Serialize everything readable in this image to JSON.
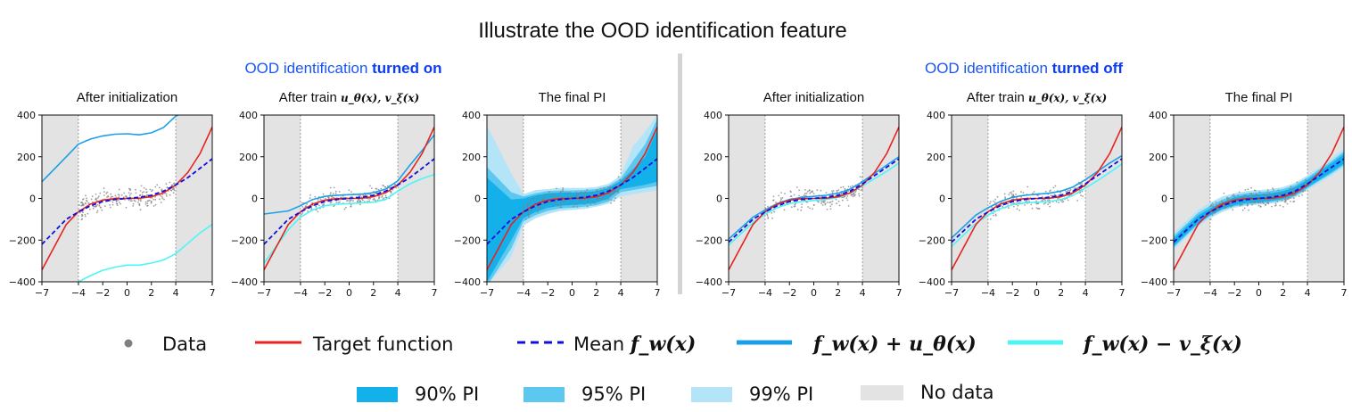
{
  "title": "Illustrate the OOD identification feature",
  "sections": [
    {
      "prefix": "OOD identification ",
      "emph": "turned on"
    },
    {
      "prefix": "OOD identification ",
      "emph": "turned off"
    }
  ],
  "colors": {
    "target": "#e8231f",
    "mean": "#1010dd",
    "upper": "#1ba0e8",
    "lower": "#4ff5f5",
    "data": "#808080",
    "pi90": "#13b0ea",
    "pi95": "#5cc8f0",
    "pi99": "#b4e4f8",
    "nodata": "#e3e3e3",
    "green": "#2fa84f"
  },
  "legend": {
    "data": "Data",
    "target": "Target function",
    "mean": "Mean ",
    "mean_math": "f_w(x)",
    "upper_math": "f_w(x) + u_θ(x)",
    "lower_math": "f_w(x) − v_ξ(x)",
    "pi90": "90% PI",
    "pi95": "95% PI",
    "pi99": "99% PI",
    "nodata": "No data"
  },
  "chart_data": [
    {
      "type": "line",
      "title": "After initialization",
      "section": "on",
      "xlim": [
        -7,
        7
      ],
      "ylim": [
        -400,
        400
      ],
      "xticks": [
        -7,
        -4,
        -2,
        0,
        2,
        4,
        7
      ],
      "yticks": [
        -400,
        -200,
        0,
        200,
        400
      ],
      "no_data_regions": [
        [
          -7,
          -4
        ],
        [
          4,
          7
        ]
      ],
      "x": [
        -7,
        -5,
        -4,
        -3,
        -2,
        -1,
        0,
        1,
        2,
        3,
        4,
        5,
        6,
        7
      ],
      "series": [
        {
          "name": "Target function",
          "values": [
            -343,
            -125,
            -64,
            -27,
            -8,
            -1,
            0,
            1,
            8,
            27,
            64,
            125,
            216,
            343
          ]
        },
        {
          "name": "Mean f_w(x)",
          "values": [
            -220,
            -100,
            -65,
            -35,
            -15,
            -5,
            0,
            5,
            15,
            35,
            65,
            100,
            145,
            190
          ]
        },
        {
          "name": "f_w(x) + u_θ(x)",
          "values": [
            80,
            200,
            260,
            285,
            300,
            308,
            310,
            305,
            315,
            340,
            395,
            420,
            430,
            440
          ]
        },
        {
          "name": "f_w(x) − v_ξ(x)",
          "values": [
            -500,
            -440,
            -400,
            -370,
            -345,
            -330,
            -320,
            -320,
            -310,
            -295,
            -265,
            -215,
            -165,
            -125
          ]
        }
      ]
    },
    {
      "type": "line",
      "title": "After train u_θ(x), v_ξ(x)",
      "section": "on",
      "xlim": [
        -7,
        7
      ],
      "ylim": [
        -400,
        400
      ],
      "xticks": [
        -7,
        -4,
        -2,
        0,
        2,
        4,
        7
      ],
      "yticks": [
        -400,
        -200,
        0,
        200,
        400
      ],
      "no_data_regions": [
        [
          -7,
          -4
        ],
        [
          4,
          7
        ]
      ],
      "x": [
        -7,
        -5,
        -4,
        -3,
        -2,
        -1,
        0,
        1,
        2,
        3,
        4,
        5,
        6,
        7
      ],
      "series": [
        {
          "name": "Target function",
          "values": [
            -343,
            -125,
            -64,
            -27,
            -8,
            -1,
            0,
            1,
            8,
            27,
            64,
            125,
            216,
            343
          ]
        },
        {
          "name": "Mean f_w(x)",
          "values": [
            -220,
            -100,
            -65,
            -35,
            -15,
            -5,
            0,
            5,
            15,
            35,
            65,
            100,
            145,
            190
          ]
        },
        {
          "name": "f_w(x) + u_θ(x)",
          "values": [
            -75,
            -60,
            -35,
            -5,
            10,
            15,
            18,
            20,
            28,
            45,
            85,
            160,
            230,
            305
          ]
        },
        {
          "name": "f_w(x) − v_ξ(x)",
          "values": [
            -310,
            -150,
            -90,
            -55,
            -35,
            -28,
            -25,
            -22,
            -18,
            -5,
            35,
            70,
            95,
            115
          ]
        }
      ]
    },
    {
      "type": "area",
      "title": "The final PI",
      "section": "on",
      "xlim": [
        -7,
        7
      ],
      "ylim": [
        -400,
        400
      ],
      "xticks": [
        -7,
        -4,
        -2,
        0,
        2,
        4,
        7
      ],
      "yticks": [
        -400,
        -200,
        0,
        200,
        400
      ],
      "no_data_regions": [
        [
          -7,
          -4
        ],
        [
          4,
          7
        ]
      ],
      "x": [
        -7,
        -5,
        -4,
        -3,
        -2,
        -1,
        0,
        1,
        2,
        3,
        4,
        5,
        6,
        7
      ],
      "series": [
        {
          "name": "Target function",
          "values": [
            -343,
            -125,
            -64,
            -27,
            -8,
            -1,
            0,
            1,
            8,
            27,
            64,
            125,
            216,
            343
          ]
        },
        {
          "name": "Mean f_w(x)",
          "values": [
            -220,
            -100,
            -65,
            -35,
            -15,
            -5,
            0,
            5,
            15,
            35,
            65,
            100,
            145,
            190
          ]
        }
      ],
      "bands": [
        {
          "name": "99% PI",
          "lower": [
            -420,
            -280,
            -130,
            -95,
            -75,
            -60,
            -55,
            -50,
            -40,
            -25,
            10,
            20,
            30,
            40
          ],
          "upper": [
            350,
            120,
            20,
            40,
            45,
            50,
            50,
            50,
            55,
            70,
            110,
            250,
            320,
            400
          ]
        },
        {
          "name": "95% PI",
          "lower": [
            -420,
            -240,
            -110,
            -80,
            -60,
            -48,
            -45,
            -40,
            -32,
            -15,
            30,
            40,
            50,
            60
          ],
          "upper": [
            150,
            30,
            10,
            25,
            35,
            38,
            38,
            40,
            45,
            60,
            95,
            180,
            260,
            380
          ]
        },
        {
          "name": "90% PI",
          "lower": [
            -400,
            -200,
            -95,
            -65,
            -45,
            -35,
            -32,
            -28,
            -20,
            0,
            45,
            55,
            65,
            80
          ],
          "upper": [
            100,
            -5,
            0,
            15,
            25,
            28,
            28,
            30,
            35,
            50,
            85,
            140,
            200,
            330
          ]
        }
      ]
    },
    {
      "type": "line",
      "title": "After initialization",
      "section": "off",
      "xlim": [
        -7,
        7
      ],
      "ylim": [
        -400,
        400
      ],
      "xticks": [
        -7,
        -4,
        -2,
        0,
        2,
        4,
        7
      ],
      "yticks": [
        -400,
        -200,
        0,
        200,
        400
      ],
      "no_data_regions": [
        [
          -7,
          -4
        ],
        [
          4,
          7
        ]
      ],
      "x": [
        -7,
        -5,
        -4,
        -3,
        -2,
        -1,
        0,
        1,
        2,
        3,
        4,
        5,
        6,
        7
      ],
      "series": [
        {
          "name": "Target function",
          "values": [
            -343,
            -125,
            -64,
            -27,
            -8,
            -1,
            0,
            1,
            8,
            27,
            64,
            125,
            216,
            343
          ]
        },
        {
          "name": "Mean f_w(x)",
          "values": [
            -210,
            -100,
            -65,
            -35,
            -15,
            -5,
            0,
            5,
            15,
            35,
            70,
            110,
            150,
            190
          ]
        },
        {
          "name": "f_w(x) + u_θ(x)",
          "values": [
            -195,
            -90,
            -55,
            -25,
            -5,
            5,
            10,
            15,
            25,
            45,
            80,
            120,
            160,
            200
          ]
        },
        {
          "name": "f_w(x) − v_ξ(x)",
          "values": [
            -225,
            -115,
            -75,
            -45,
            -25,
            -15,
            -10,
            -5,
            5,
            25,
            60,
            95,
            130,
            170
          ]
        }
      ]
    },
    {
      "type": "line",
      "title": "After train u_θ(x), v_ξ(x)",
      "section": "off",
      "xlim": [
        -7,
        7
      ],
      "ylim": [
        -400,
        400
      ],
      "xticks": [
        -7,
        -4,
        -2,
        0,
        2,
        4,
        7
      ],
      "yticks": [
        -400,
        -200,
        0,
        200,
        400
      ],
      "no_data_regions": [
        [
          -7,
          -4
        ],
        [
          4,
          7
        ]
      ],
      "x": [
        -7,
        -5,
        -4,
        -3,
        -2,
        -1,
        0,
        1,
        2,
        3,
        4,
        5,
        6,
        7
      ],
      "series": [
        {
          "name": "Target function",
          "values": [
            -343,
            -125,
            -64,
            -27,
            -8,
            -1,
            0,
            1,
            8,
            27,
            64,
            125,
            216,
            343
          ]
        },
        {
          "name": "Mean f_w(x)",
          "values": [
            -210,
            -100,
            -65,
            -35,
            -15,
            -5,
            0,
            5,
            15,
            35,
            70,
            110,
            150,
            190
          ]
        },
        {
          "name": "f_w(x) + u_θ(x)",
          "values": [
            -190,
            -80,
            -45,
            -15,
            5,
            15,
            20,
            25,
            35,
            55,
            90,
            130,
            170,
            205
          ]
        },
        {
          "name": "f_w(x) − v_ξ(x)",
          "values": [
            -230,
            -120,
            -80,
            -50,
            -30,
            -22,
            -18,
            -15,
            -5,
            15,
            50,
            85,
            125,
            165
          ]
        }
      ]
    },
    {
      "type": "area",
      "title": "The final PI",
      "section": "off",
      "xlim": [
        -7,
        7
      ],
      "ylim": [
        -400,
        400
      ],
      "xticks": [
        -7,
        -4,
        -2,
        0,
        2,
        4,
        7
      ],
      "yticks": [
        -400,
        -200,
        0,
        200,
        400
      ],
      "no_data_regions": [
        [
          -7,
          -4
        ],
        [
          4,
          7
        ]
      ],
      "x": [
        -7,
        -5,
        -4,
        -3,
        -2,
        -1,
        0,
        1,
        2,
        3,
        4,
        5,
        6,
        7
      ],
      "series": [
        {
          "name": "Target function",
          "values": [
            -343,
            -125,
            -64,
            -27,
            -8,
            -1,
            0,
            1,
            8,
            27,
            64,
            125,
            216,
            343
          ]
        },
        {
          "name": "Mean f_w(x)",
          "values": [
            -210,
            -100,
            -65,
            -35,
            -15,
            -5,
            0,
            5,
            15,
            35,
            70,
            110,
            150,
            190
          ]
        }
      ],
      "bands": [
        {
          "name": "99% PI",
          "lower": [
            -245,
            -135,
            -95,
            -65,
            -45,
            -35,
            -30,
            -25,
            -15,
            5,
            40,
            75,
            110,
            150
          ],
          "upper": [
            -165,
            -55,
            -20,
            10,
            25,
            35,
            40,
            45,
            55,
            75,
            110,
            150,
            195,
            240
          ]
        },
        {
          "name": "95% PI",
          "lower": [
            -235,
            -125,
            -85,
            -55,
            -38,
            -28,
            -23,
            -18,
            -8,
            12,
            48,
            85,
            120,
            160
          ],
          "upper": [
            -180,
            -70,
            -35,
            -5,
            15,
            25,
            30,
            35,
            45,
            65,
            100,
            140,
            180,
            225
          ]
        },
        {
          "name": "90% PI",
          "lower": [
            -228,
            -118,
            -80,
            -50,
            -32,
            -22,
            -18,
            -12,
            -2,
            18,
            55,
            90,
            128,
            168
          ],
          "upper": [
            -192,
            -82,
            -48,
            -18,
            5,
            15,
            20,
            25,
            35,
            55,
            90,
            130,
            170,
            212
          ]
        }
      ]
    }
  ]
}
